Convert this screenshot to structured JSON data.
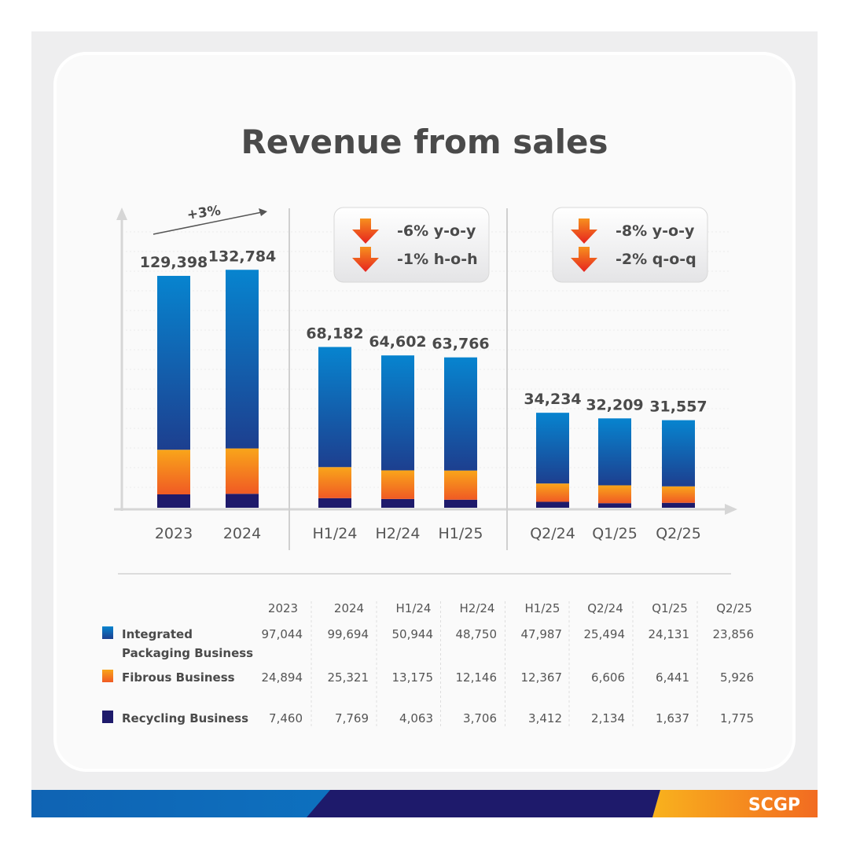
{
  "brand": {
    "logo_text": "SCGP",
    "colors": {
      "blue": "#0a7fc9",
      "navy": "#1e1a6b",
      "orange": "#f7a21b",
      "red": "#e8321e"
    }
  },
  "chart_data": {
    "type": "bar",
    "stacked": true,
    "title": "Revenue from sales",
    "categories": [
      "2023",
      "2024",
      "H1/24",
      "H2/24",
      "H1/25",
      "Q2/24",
      "Q1/25",
      "Q2/25"
    ],
    "groups": [
      {
        "name": "annual",
        "categories": [
          "2023",
          "2024"
        ],
        "annotation": "+3%"
      },
      {
        "name": "half-year",
        "categories": [
          "H1/24",
          "H2/24",
          "H1/25"
        ],
        "callouts": [
          "-6% y-o-y",
          "-1% h-o-h"
        ]
      },
      {
        "name": "quarter",
        "categories": [
          "Q2/24",
          "Q1/25",
          "Q2/25"
        ],
        "callouts": [
          "-8% y-o-y",
          "-2% q-o-q"
        ]
      }
    ],
    "totals": [
      "129,398",
      "132,784",
      "68,182",
      "64,602",
      "63,766",
      "34,234",
      "32,209",
      "31,557"
    ],
    "series": [
      {
        "name": "Integrated Packaging Business",
        "name_lines": [
          "Integrated",
          "Packaging Business"
        ],
        "color": "#0a7fc9",
        "values": [
          97044,
          99694,
          50944,
          48750,
          47987,
          25494,
          24131,
          23856
        ],
        "labels": [
          "97,044",
          "99,694",
          "50,944",
          "48,750",
          "47,987",
          "25,494",
          "24,131",
          "23,856"
        ]
      },
      {
        "name": "Fibrous Business",
        "color": "#f7a21b",
        "values": [
          24894,
          25321,
          13175,
          12146,
          12367,
          6606,
          6441,
          5926
        ],
        "labels": [
          "24,894",
          "25,321",
          "13,175",
          "12,146",
          "12,367",
          "6,606",
          "6,441",
          "5,926"
        ]
      },
      {
        "name": "Recycling Business",
        "color": "#1e1a6b",
        "values": [
          7460,
          7769,
          4063,
          3706,
          3412,
          2134,
          1637,
          1775
        ],
        "labels": [
          "7,460",
          "7,769",
          "4,063",
          "3,706",
          "3,412",
          "2,134",
          "1,637",
          "1,775"
        ]
      }
    ],
    "xlabel": "",
    "ylabel": "",
    "grid": true,
    "legend": "bottom-table"
  }
}
